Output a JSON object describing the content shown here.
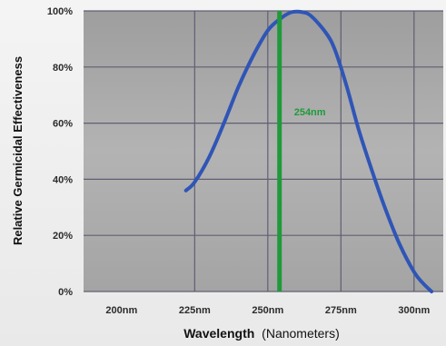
{
  "chart_data": {
    "type": "line",
    "ylabel": "Relative Germicidal Effectiveness",
    "xlabel": {
      "bold": "Wavelength",
      "normal": "(Nanometers)"
    },
    "x_ticks": [
      {
        "value": 200,
        "label": "200nm"
      },
      {
        "value": 225,
        "label": "225nm"
      },
      {
        "value": 250,
        "label": "250nm"
      },
      {
        "value": 275,
        "label": "275nm"
      },
      {
        "value": 300,
        "label": "300nm"
      }
    ],
    "y_ticks": [
      {
        "value": 0,
        "label": "0%"
      },
      {
        "value": 20,
        "label": "20%"
      },
      {
        "value": 40,
        "label": "40%"
      },
      {
        "value": 60,
        "label": "60%"
      },
      {
        "value": 80,
        "label": "80%"
      },
      {
        "value": 100,
        "label": "100%"
      }
    ],
    "xlim": [
      187,
      310
    ],
    "ylim": [
      0,
      100
    ],
    "grid": true,
    "series": [
      {
        "color": "#2f55b6",
        "points": [
          [
            222,
            36
          ],
          [
            225,
            39
          ],
          [
            230,
            48
          ],
          [
            235,
            60
          ],
          [
            240,
            73
          ],
          [
            245,
            84
          ],
          [
            250,
            93
          ],
          [
            254,
            97
          ],
          [
            258,
            99.5
          ],
          [
            262,
            99.5
          ],
          [
            265,
            98
          ],
          [
            270,
            92
          ],
          [
            273,
            86
          ],
          [
            277,
            73
          ],
          [
            281,
            58
          ],
          [
            285,
            45
          ],
          [
            290,
            30
          ],
          [
            295,
            17
          ],
          [
            300,
            7
          ],
          [
            303,
            3
          ],
          [
            306,
            0
          ]
        ]
      }
    ],
    "marker": {
      "x": 254,
      "label": "254nm",
      "color": "#1f9a3a"
    },
    "colors": {
      "plot_bg": "#a9a9a9",
      "grid": "#5f5f73",
      "line": "#2f55b6",
      "marker": "#1f9a3a"
    }
  }
}
